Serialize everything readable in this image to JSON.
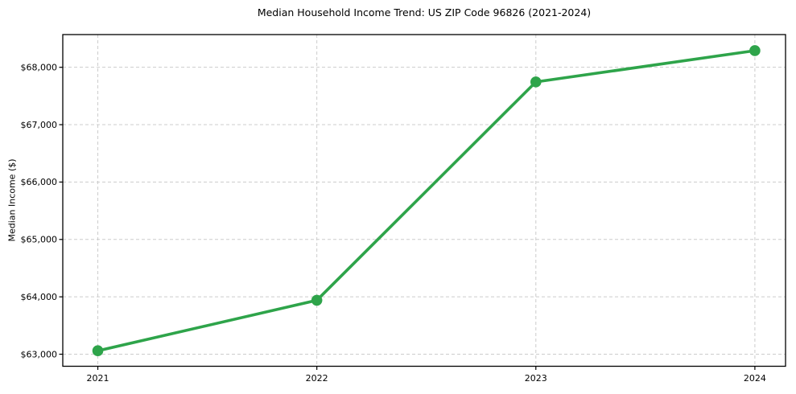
{
  "chart_data": {
    "type": "line",
    "title": "Median Household Income Trend: US ZIP Code 96826 (2021-2024)",
    "xlabel": "",
    "ylabel": "Median Income ($)",
    "categories": [
      "2021",
      "2022",
      "2023",
      "2024"
    ],
    "x": [
      2021,
      2022,
      2023,
      2024
    ],
    "series": [
      {
        "name": "Median household income",
        "values": [
          63060,
          63940,
          67745,
          68290
        ]
      }
    ],
    "ytick_values": [
      63000,
      64000,
      65000,
      66000,
      67000,
      68000
    ],
    "ytick_labels": [
      "$63,000",
      "$64,000",
      "$65,000",
      "$66,000",
      "$67,000",
      "$68,000"
    ],
    "ylim": [
      62790,
      68570
    ],
    "xlim": [
      2020.84,
      2024.14
    ],
    "grid": true,
    "grid_style": "dashed",
    "legend": "none",
    "colors": {
      "line": "#2ea44a",
      "marker": "#2ea44a",
      "grid": "#cccccc",
      "axis": "#000000",
      "text": "#000000",
      "background": "#ffffff"
    }
  }
}
